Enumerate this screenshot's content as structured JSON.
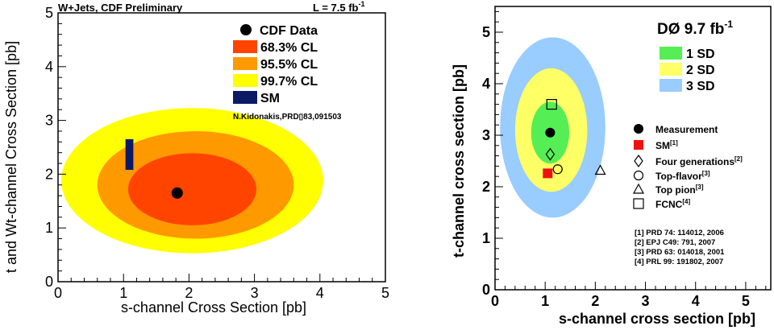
{
  "chart_data": [
    {
      "type": "contour",
      "header_left": "W+Jets, CDF Preliminary",
      "header_right_text": "L = 7.5 fb",
      "header_right_sup": "-1",
      "xlabel": "s-channel Cross Section [pb]",
      "ylabel": "t and Wt-channel Cross Section [pb]",
      "xlim": [
        0,
        5
      ],
      "ylim": [
        0,
        5
      ],
      "xticks": [
        "0",
        "1",
        "2",
        "3",
        "4",
        "5"
      ],
      "yticks": [
        "0",
        "1",
        "2",
        "3",
        "4",
        "5"
      ],
      "measurement": {
        "x": 1.82,
        "y": 1.65
      },
      "regions": [
        {
          "label": "99.7% CL",
          "color": "#ffff00",
          "cx": 2.05,
          "cy": 1.88,
          "rx": 2.0,
          "ry": 1.35
        },
        {
          "label": "95.5% CL",
          "color": "#ff9900",
          "cx": 2.1,
          "cy": 1.8,
          "rx": 1.5,
          "ry": 1.0
        },
        {
          "label": "68.3% CL",
          "color": "#ff4400",
          "cx": 2.05,
          "cy": 1.72,
          "rx": 0.98,
          "ry": 0.67
        }
      ],
      "sm": {
        "label": "SM",
        "color": "#0c1a66",
        "x0": 1.03,
        "x1": 1.15,
        "y0": 2.08,
        "y1": 2.65
      },
      "legend": [
        "CDF Data",
        "68.3% CL",
        "95.5% CL",
        "99.7% CL",
        "SM"
      ],
      "citation": "N.Kidonakis,PRD▯83,091503"
    },
    {
      "type": "contour",
      "title_text": "DØ 9.7 fb",
      "title_sup": "-1",
      "xlabel": "s-channel cross section [pb]",
      "ylabel": "t-channel cross section [pb]",
      "xlim": [
        0,
        5.5
      ],
      "ylim": [
        0,
        5.5
      ],
      "xticks": [
        "0",
        "1",
        "2",
        "3",
        "4",
        "5"
      ],
      "yticks": [
        "0",
        "1",
        "2",
        "3",
        "4",
        "5"
      ],
      "measurement": {
        "x": 1.1,
        "y": 3.05
      },
      "regions": [
        {
          "label": "3 SD",
          "color": "#99ccff",
          "cx": 1.15,
          "cy": 3.15,
          "rx": 1.05,
          "ry": 1.75
        },
        {
          "label": "2 SD",
          "color": "#ffff66",
          "cx": 1.12,
          "cy": 3.1,
          "rx": 0.72,
          "ry": 1.2
        },
        {
          "label": "1 SD",
          "color": "#55ee55",
          "cx": 1.1,
          "cy": 3.05,
          "rx": 0.38,
          "ry": 0.6
        }
      ],
      "sd_legend": [
        "1 SD",
        "2 SD",
        "3 SD"
      ],
      "markers": [
        {
          "shape": "square-filled",
          "x": 1.05,
          "y": 2.26
        },
        {
          "shape": "diamond",
          "x": 1.1,
          "y": 2.63
        },
        {
          "shape": "circle",
          "x": 1.25,
          "y": 2.34
        },
        {
          "shape": "triangle",
          "x": 2.1,
          "y": 2.32
        },
        {
          "shape": "square",
          "x": 1.13,
          "y": 3.6
        }
      ],
      "legend": [
        {
          "shape": "dot",
          "label": "Measurement",
          "sup": ""
        },
        {
          "shape": "square-filled",
          "label": "SM",
          "sup": "[1]"
        },
        {
          "shape": "diamond",
          "label": "Four generations",
          "sup": "[2]"
        },
        {
          "shape": "circle",
          "label": "Top-flavor",
          "sup": "[3]"
        },
        {
          "shape": "triangle",
          "label": "Top pion",
          "sup": "[3]"
        },
        {
          "shape": "square",
          "label": "FCNC",
          "sup": "[4]"
        }
      ],
      "references": [
        "[1] PRD 74: 114012, 2006",
        "[2] EPJ C49: 791, 2007",
        "[3] PRD 63: 014018, 2001",
        "[4] PRL 99: 191802, 2007"
      ]
    }
  ]
}
